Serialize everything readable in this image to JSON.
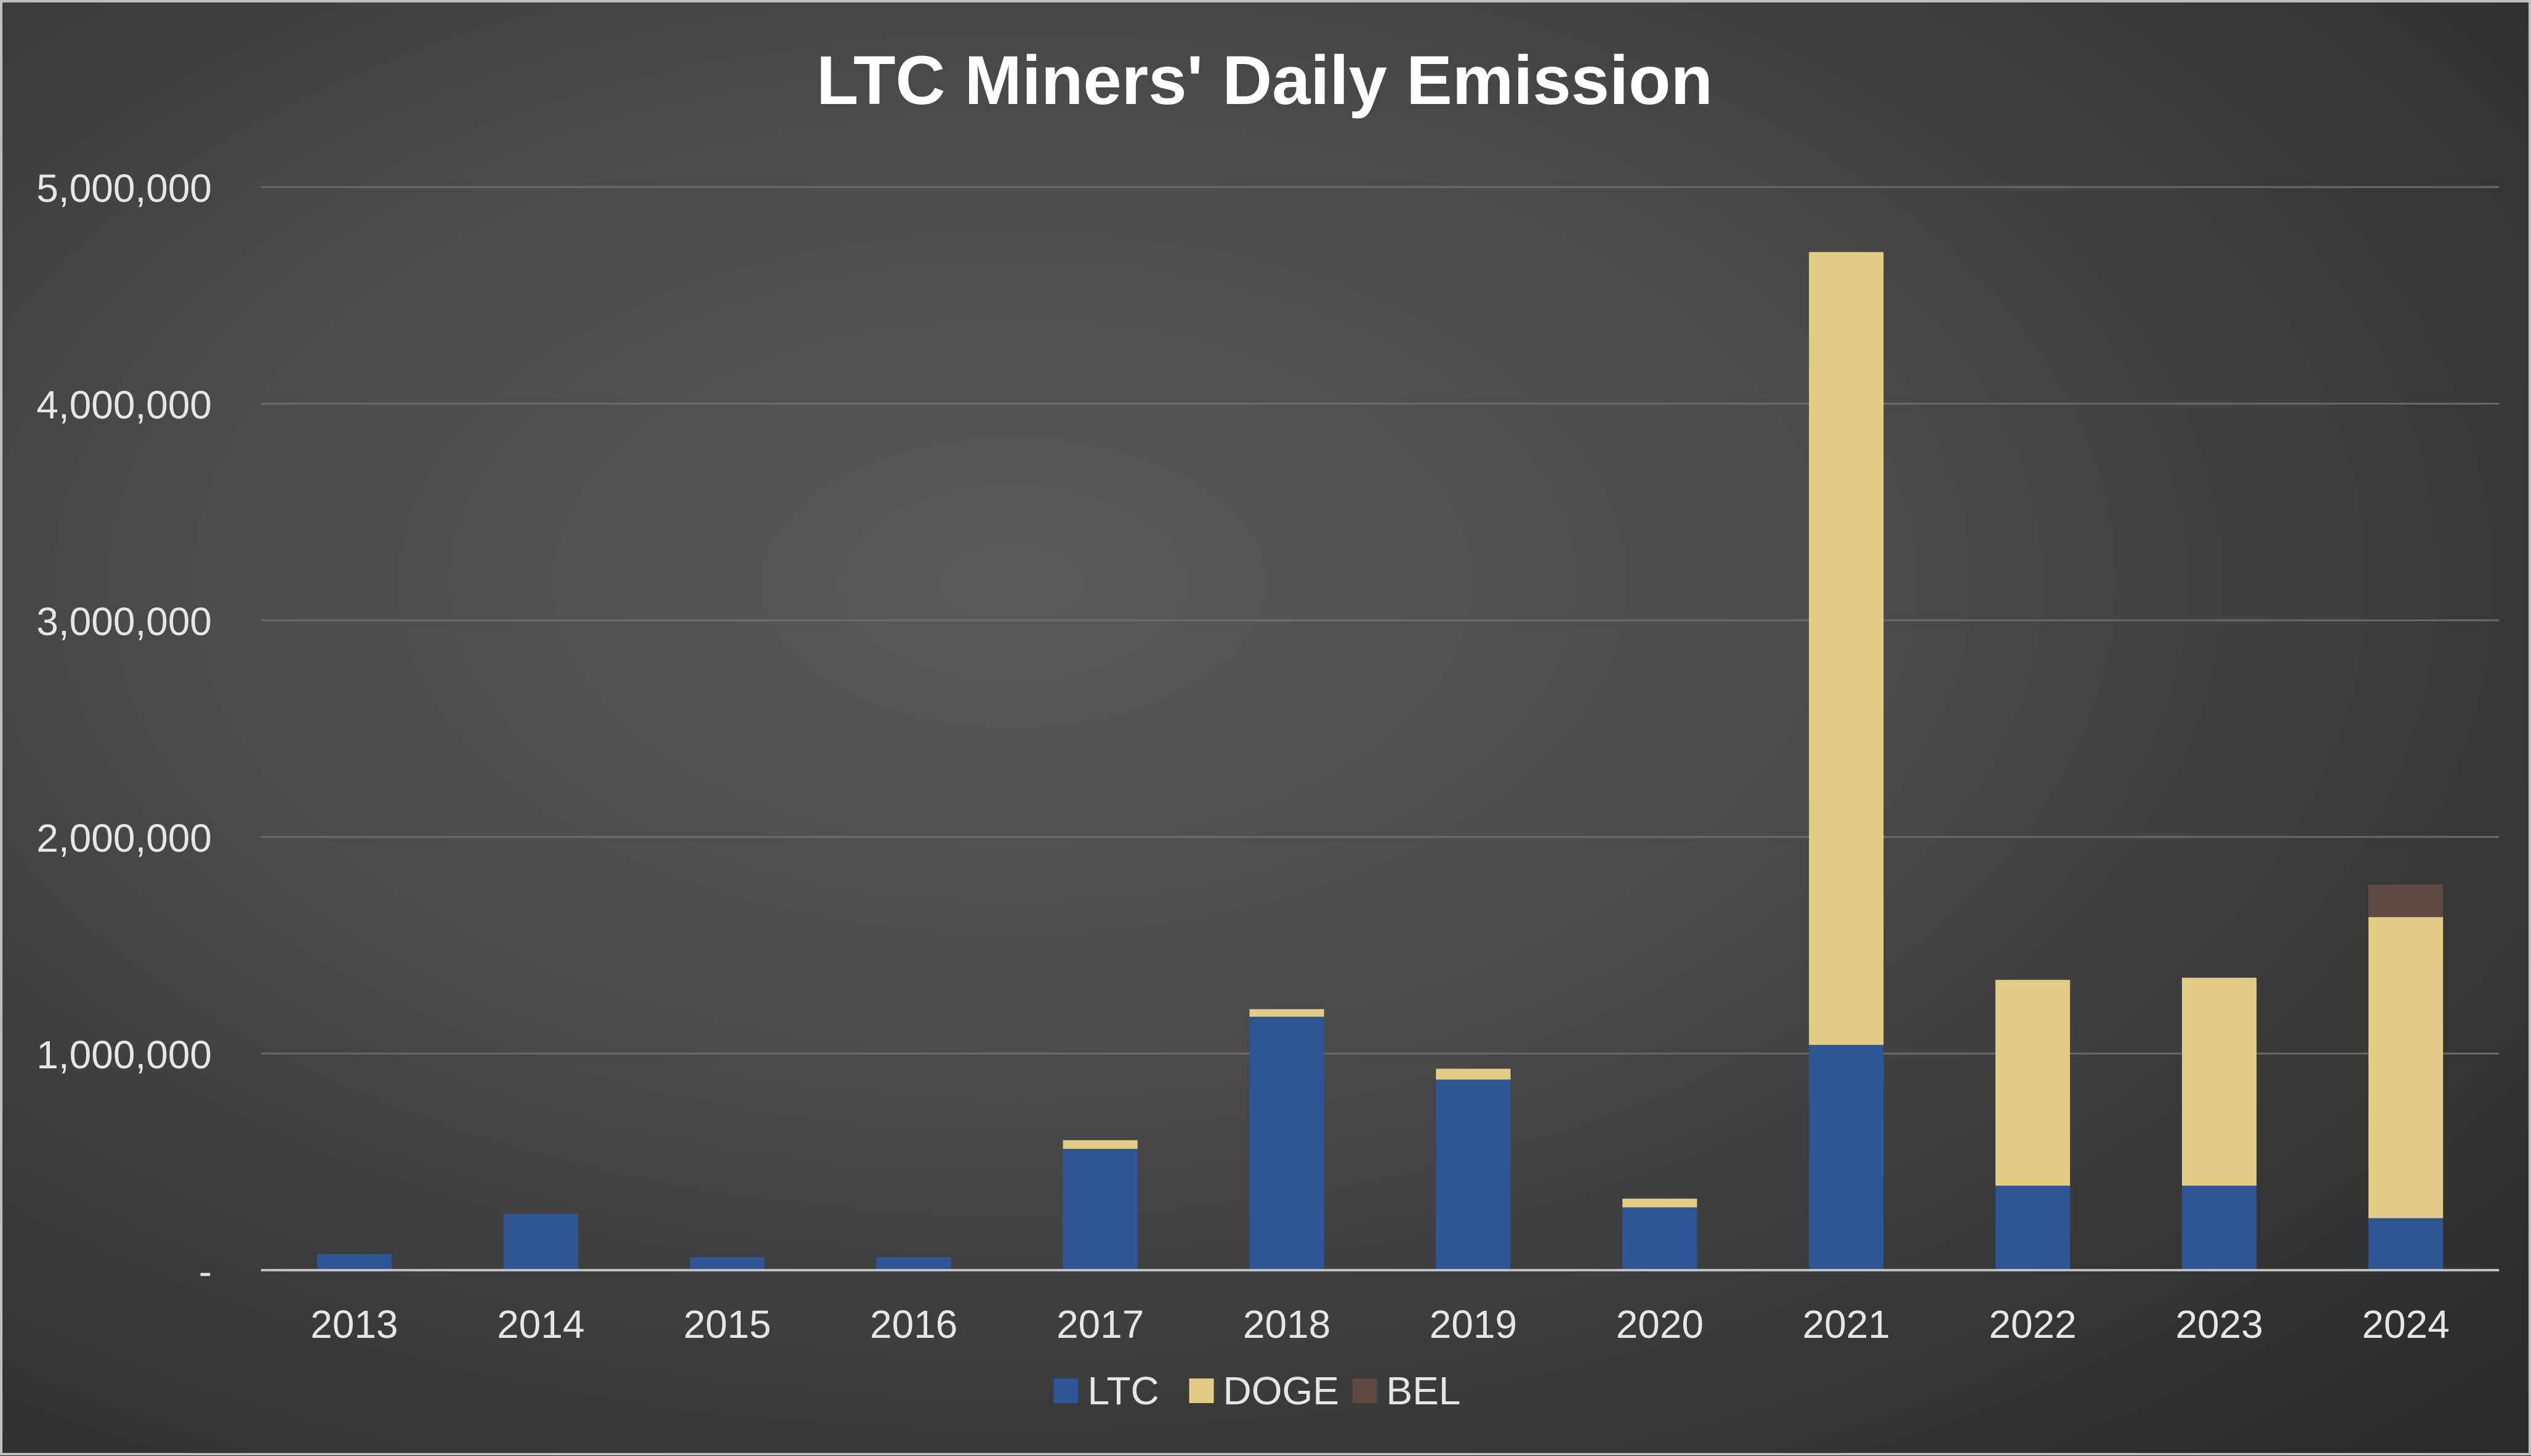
{
  "chart_data": {
    "type": "bar",
    "stacked": true,
    "title": "LTC Miners' Daily Emission",
    "xlabel": "",
    "ylabel": "",
    "categories": [
      "2013",
      "2014",
      "2015",
      "2016",
      "2017",
      "2018",
      "2019",
      "2020",
      "2021",
      "2022",
      "2023",
      "2024"
    ],
    "series": [
      {
        "name": "LTC",
        "color": "#2f5597",
        "values": [
          75000,
          260000,
          60000,
          60000,
          560000,
          1170000,
          880000,
          290000,
          1040000,
          390000,
          390000,
          240000
        ]
      },
      {
        "name": "DOGE",
        "color": "#e2cd86",
        "values": [
          0,
          0,
          0,
          0,
          40000,
          35000,
          50000,
          40000,
          3660000,
          950000,
          960000,
          1390000
        ]
      },
      {
        "name": "BEL",
        "color": "#5e4a40",
        "values": [
          0,
          0,
          0,
          0,
          0,
          0,
          0,
          0,
          0,
          0,
          0,
          150000
        ]
      }
    ],
    "ylim": [
      0,
      5000000
    ],
    "yticks": [
      0,
      1000000,
      2000000,
      3000000,
      4000000,
      5000000
    ],
    "ytick_labels": [
      "-",
      "1,000,000",
      "2,000,000",
      "3,000,000",
      "4,000,000",
      "5,000,000"
    ],
    "grid": true,
    "legend_position": "bottom-center"
  },
  "colors": {
    "background": "#4a4a4a",
    "title": "#ffffff",
    "tick_label": "#e6e6e6",
    "gridline": "#6a6a6a",
    "axis_line": "#bfbfbf"
  }
}
